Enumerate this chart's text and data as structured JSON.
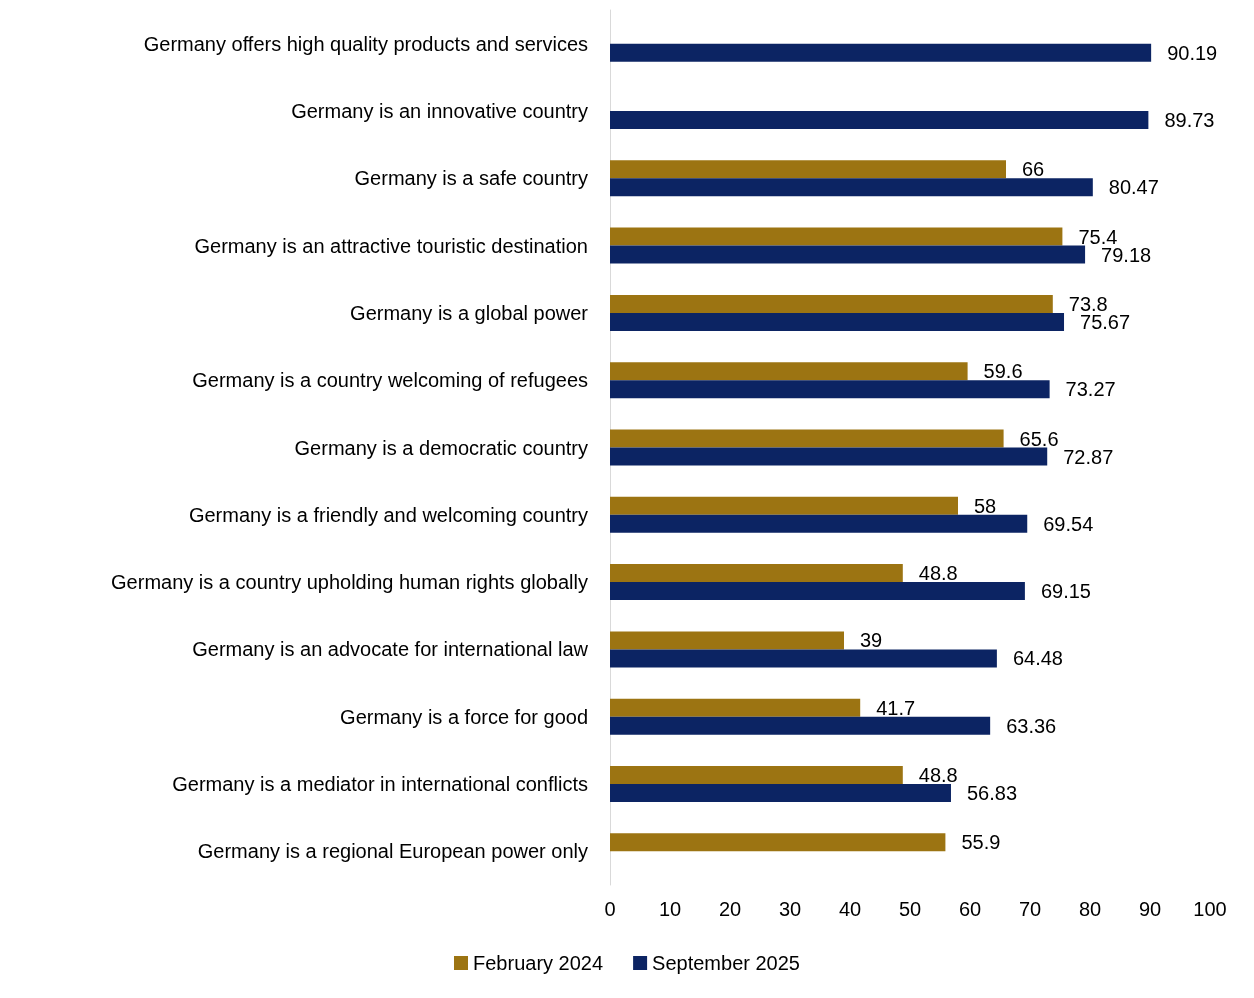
{
  "chart_data": {
    "type": "bar",
    "orientation": "horizontal",
    "categories": [
      "Germany offers high quality products and services",
      "Germany is an innovative country",
      "Germany is a safe country",
      "Germany is an attractive touristic destination",
      "Germany is a global power",
      "Germany is a country welcoming of refugees",
      "Germany is a democratic country",
      "Germany is a friendly and welcoming country",
      "Germany is a country upholding human rights globally",
      "Germany is an advocate for international law",
      "Germany is a force for good",
      "Germany is a mediator in international conflicts",
      "Germany is a regional European power only"
    ],
    "series": [
      {
        "name": "February 2024",
        "color": "#9c7412",
        "values": [
          null,
          null,
          66,
          75.4,
          73.8,
          59.6,
          65.6,
          58,
          48.8,
          39,
          41.7,
          48.8,
          55.9
        ]
      },
      {
        "name": "September 2025",
        "color": "#0c2463",
        "values": [
          90.19,
          89.73,
          80.47,
          79.18,
          75.67,
          73.27,
          72.87,
          69.54,
          69.15,
          64.48,
          63.36,
          56.83,
          null
        ]
      }
    ],
    "xlim": [
      0,
      100
    ],
    "xticks": [
      0,
      10,
      20,
      30,
      40,
      50,
      60,
      70,
      80,
      90,
      100
    ],
    "data_labels": true,
    "grid": false,
    "legend": "bottom"
  }
}
